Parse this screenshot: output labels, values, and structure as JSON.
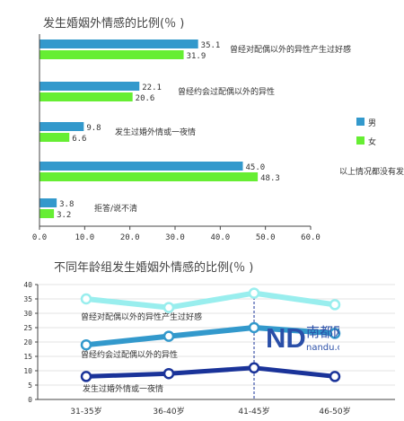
{
  "chart_data": [
    {
      "type": "bar",
      "title": "发生婚姻外情感的比例(％ )",
      "categories": [
        "曾经对配偶以外的异性产生过好感",
        "曾经约会过配偶以外的异性",
        "发生过婚外情或一夜情",
        "以上情况都没有发生过",
        "拒答/说不清"
      ],
      "series": [
        {
          "name": "男",
          "color": "#3399cc",
          "values": [
            35.1,
            22.1,
            9.8,
            45.0,
            3.8
          ],
          "labels": [
            "35.1",
            "22.1",
            "9.8",
            "45.0",
            "3.8"
          ]
        },
        {
          "name": "女",
          "color": "#66ee33",
          "values": [
            31.9,
            20.6,
            6.6,
            48.3,
            3.2
          ],
          "labels": [
            "31.9",
            "20.6",
            "6.6",
            "48.3",
            "3.2"
          ]
        }
      ],
      "xlim": [
        0,
        60
      ],
      "xticks": [
        "0.0",
        "10.0",
        "20.0",
        "30.0",
        "40.0",
        "50.0",
        "60.0"
      ],
      "legend": "right"
    },
    {
      "type": "line",
      "title": "不同年龄组发生婚姻外情感的比例(％ )",
      "categories": [
        "31-35岁",
        "36-40岁",
        "41-45岁",
        "46-50岁"
      ],
      "series": [
        {
          "name": "曾经对配偶以外的异性产生过好感",
          "color": "#99eeee",
          "values": [
            35,
            32,
            37,
            33
          ]
        },
        {
          "name": "曾经约会过配偶以外的异性",
          "color": "#3399cc",
          "values": [
            19,
            22,
            25,
            23
          ]
        },
        {
          "name": "发生过婚外情或一夜情",
          "color": "#1a3399",
          "values": [
            8,
            9,
            11,
            8
          ]
        }
      ],
      "ylim": [
        0,
        40
      ],
      "yticks": [
        "0",
        "5",
        "10",
        "15",
        "20",
        "25",
        "30",
        "35",
        "40"
      ]
    }
  ],
  "watermark": {
    "brand": "南都网",
    "url": "nandu.com"
  }
}
